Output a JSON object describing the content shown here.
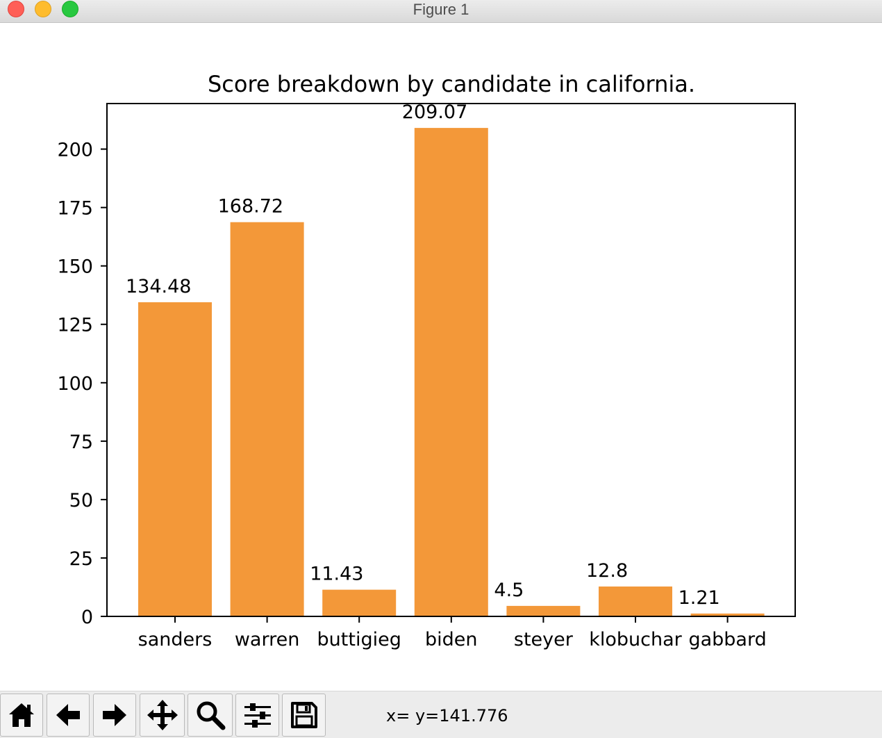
{
  "window": {
    "title": "Figure 1",
    "buttons": [
      "close",
      "minimize",
      "maximize"
    ]
  },
  "chart_data": {
    "type": "bar",
    "title": "Score breakdown by candidate in california.",
    "xlabel": "",
    "ylabel": "",
    "categories": [
      "sanders",
      "warren",
      "buttigieg",
      "biden",
      "steyer",
      "klobuchar",
      "gabbard"
    ],
    "values": [
      134.48,
      168.72,
      11.43,
      209.07,
      4.5,
      12.8,
      1.21
    ],
    "value_labels": [
      "134.48",
      "168.72",
      "11.43",
      "209.07",
      "4.5",
      "12.8",
      "1.21"
    ],
    "yticks": [
      0,
      25,
      50,
      75,
      100,
      125,
      150,
      175,
      200
    ],
    "ylim": [
      0,
      219.5
    ],
    "bar_color": "#f39839",
    "grid": false,
    "legend": false
  },
  "toolbar": {
    "tools": [
      {
        "name": "home-icon",
        "label": "Home"
      },
      {
        "name": "back-arrow-icon",
        "label": "Back"
      },
      {
        "name": "forward-arrow-icon",
        "label": "Forward"
      },
      {
        "name": "pan-icon",
        "label": "Pan"
      },
      {
        "name": "zoom-icon",
        "label": "Zoom"
      },
      {
        "name": "configure-subplots-icon",
        "label": "Subplots"
      },
      {
        "name": "save-icon",
        "label": "Save"
      }
    ],
    "coordinates": "x= y=141.776"
  }
}
